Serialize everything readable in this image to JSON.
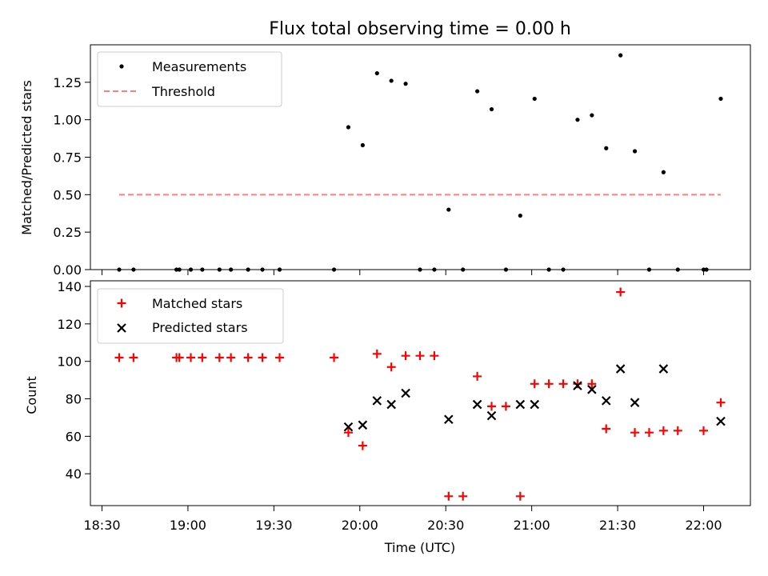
{
  "chart_data": [
    {
      "type": "scatter",
      "title": "Flux total observing time = 0.00 h",
      "xlabel": "",
      "ylabel": "Matched/Predicted stars",
      "ylim": [
        0,
        1.5
      ],
      "yticks": [
        "0.00",
        "0.25",
        "0.50",
        "0.75",
        "1.00",
        "1.25"
      ],
      "legend": "top-left",
      "series": [
        {
          "name": "Measurements",
          "color": "#000000",
          "marker": "dot",
          "points": [
            [
              "18:36",
              0
            ],
            [
              "18:41",
              0
            ],
            [
              "18:56",
              0
            ],
            [
              "18:57",
              0
            ],
            [
              "19:01",
              0
            ],
            [
              "19:05",
              0
            ],
            [
              "19:11",
              0
            ],
            [
              "19:15",
              0
            ],
            [
              "19:21",
              0
            ],
            [
              "19:26",
              0
            ],
            [
              "19:32",
              0
            ],
            [
              "19:51",
              0
            ],
            [
              "19:56",
              0.95
            ],
            [
              "20:01",
              0.83
            ],
            [
              "20:06",
              1.31
            ],
            [
              "20:11",
              1.26
            ],
            [
              "20:16",
              1.24
            ],
            [
              "20:21",
              0
            ],
            [
              "20:26",
              0
            ],
            [
              "20:31",
              0.4
            ],
            [
              "20:36",
              0
            ],
            [
              "20:41",
              1.19
            ],
            [
              "20:46",
              1.07
            ],
            [
              "20:51",
              0
            ],
            [
              "20:56",
              0.36
            ],
            [
              "21:01",
              1.14
            ],
            [
              "21:06",
              0
            ],
            [
              "21:11",
              0
            ],
            [
              "21:16",
              1.0
            ],
            [
              "21:21",
              1.03
            ],
            [
              "21:26",
              0.81
            ],
            [
              "21:31",
              1.43
            ],
            [
              "21:36",
              0.79
            ],
            [
              "21:41",
              0
            ],
            [
              "21:46",
              0.65
            ],
            [
              "21:51",
              0
            ],
            [
              "22:00",
              0
            ],
            [
              "22:01",
              0
            ],
            [
              "22:06",
              1.14
            ]
          ]
        },
        {
          "name": "Threshold",
          "color": "#ff7f7f",
          "style": "dashed",
          "points": [
            [
              "18:36",
              0.5
            ],
            [
              "22:06",
              0.5
            ]
          ]
        }
      ]
    },
    {
      "type": "scatter",
      "title": "",
      "xlabel": "Time (UTC)",
      "ylabel": "Count",
      "ylim": [
        23,
        143
      ],
      "yticks": [
        "40",
        "60",
        "80",
        "100",
        "120",
        "140"
      ],
      "xticks": [
        "18:30",
        "19:00",
        "19:30",
        "20:00",
        "20:30",
        "21:00",
        "21:30",
        "22:00"
      ],
      "legend": "top-left",
      "series": [
        {
          "name": "Matched stars",
          "color": "#ff0000",
          "marker": "plus",
          "points": [
            [
              "18:36",
              102
            ],
            [
              "18:41",
              102
            ],
            [
              "18:56",
              102
            ],
            [
              "18:57",
              102
            ],
            [
              "19:01",
              102
            ],
            [
              "19:05",
              102
            ],
            [
              "19:11",
              102
            ],
            [
              "19:15",
              102
            ],
            [
              "19:21",
              102
            ],
            [
              "19:26",
              102
            ],
            [
              "19:32",
              102
            ],
            [
              "19:51",
              102
            ],
            [
              "19:56",
              62
            ],
            [
              "20:01",
              55
            ],
            [
              "20:06",
              104
            ],
            [
              "20:11",
              97
            ],
            [
              "20:16",
              103
            ],
            [
              "20:21",
              103
            ],
            [
              "20:26",
              103
            ],
            [
              "20:31",
              28
            ],
            [
              "20:36",
              28
            ],
            [
              "20:41",
              92
            ],
            [
              "20:46",
              76
            ],
            [
              "20:51",
              76
            ],
            [
              "20:56",
              28
            ],
            [
              "21:01",
              88
            ],
            [
              "21:06",
              88
            ],
            [
              "21:11",
              88
            ],
            [
              "21:16",
              88
            ],
            [
              "21:21",
              88
            ],
            [
              "21:26",
              64
            ],
            [
              "21:31",
              137
            ],
            [
              "21:36",
              62
            ],
            [
              "21:41",
              62
            ],
            [
              "21:46",
              63
            ],
            [
              "21:51",
              63
            ],
            [
              "22:00",
              63
            ],
            [
              "22:06",
              78
            ]
          ]
        },
        {
          "name": "Predicted stars",
          "color": "#000000",
          "marker": "x",
          "points": [
            [
              "19:56",
              65
            ],
            [
              "20:01",
              66
            ],
            [
              "20:06",
              79
            ],
            [
              "20:11",
              77
            ],
            [
              "20:16",
              83
            ],
            [
              "20:31",
              69
            ],
            [
              "20:41",
              77
            ],
            [
              "20:46",
              71
            ],
            [
              "20:56",
              77
            ],
            [
              "21:01",
              77
            ],
            [
              "21:16",
              87
            ],
            [
              "21:21",
              85
            ],
            [
              "21:26",
              79
            ],
            [
              "21:31",
              96
            ],
            [
              "21:36",
              78
            ],
            [
              "21:46",
              96
            ],
            [
              "22:06",
              68
            ]
          ]
        }
      ]
    }
  ]
}
